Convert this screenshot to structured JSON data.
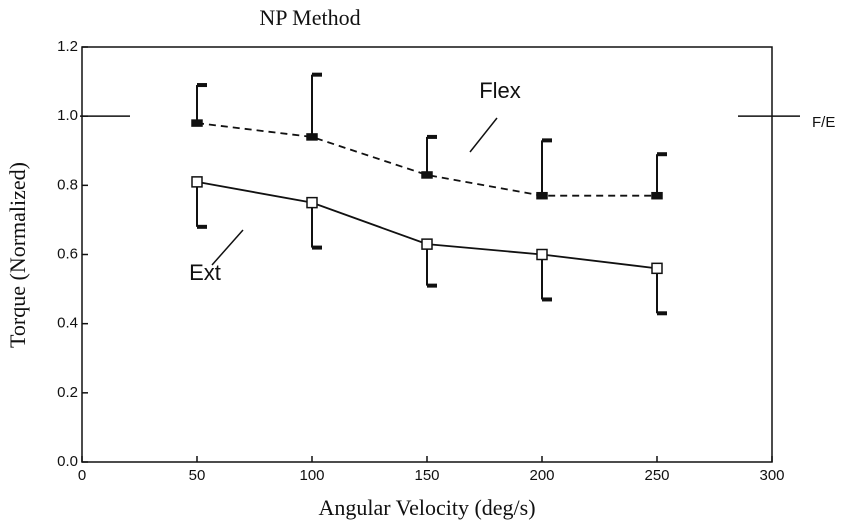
{
  "chart_data": {
    "type": "line",
    "title": "NP Method",
    "x_label": "Angular Velocity (deg/s)",
    "y_label": "Torque (Normalized)",
    "x": [
      50,
      100,
      150,
      200,
      250
    ],
    "series": [
      {
        "name": "Flex",
        "color": "#111111",
        "dash": true,
        "marker": "filled",
        "error_direction": "up",
        "values": [
          0.98,
          0.94,
          0.83,
          0.77,
          0.77
        ],
        "errors": [
          0.11,
          0.18,
          0.11,
          0.16,
          0.12
        ]
      },
      {
        "name": "Ext",
        "color": "#111111",
        "dash": false,
        "marker": "open",
        "error_direction": "down",
        "values": [
          0.81,
          0.75,
          0.63,
          0.6,
          0.56
        ],
        "errors": [
          0.13,
          0.13,
          0.12,
          0.13,
          0.13
        ]
      }
    ],
    "reference": {
      "value": 1.0,
      "label": "F/E"
    },
    "xlim": [
      0,
      300
    ],
    "xticks": [
      0,
      50,
      100,
      150,
      200,
      250,
      300
    ],
    "ylim": [
      0,
      1.2
    ],
    "yticks": [
      {
        "value": 0,
        "label": "0.0"
      },
      0.2,
      0.4,
      0.6,
      0.8,
      {
        "value": 1.0,
        "label": "1.0"
      },
      1.2
    ]
  }
}
